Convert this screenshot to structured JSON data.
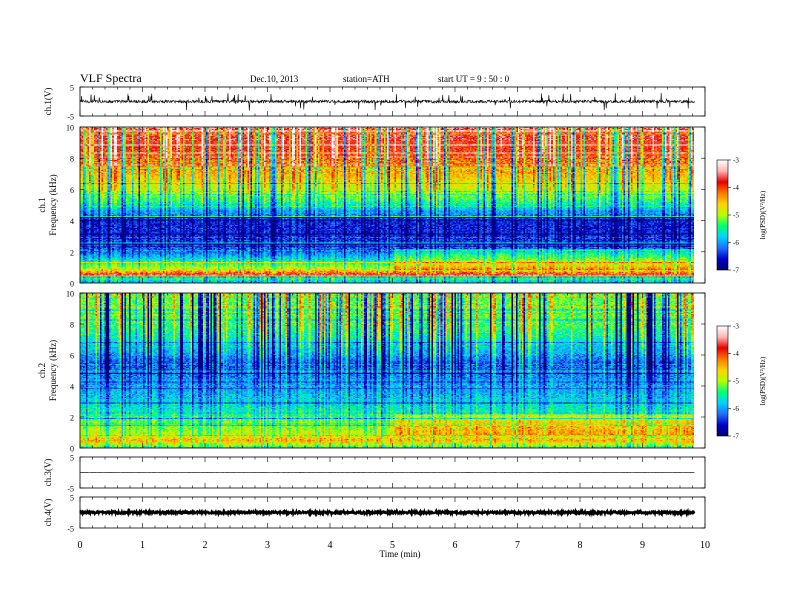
{
  "header": {
    "title": "VLF  Spectra",
    "date": "Dec.10, 2013",
    "station": "station=ATH",
    "start": "start  UT  =   9 : 50 : 0"
  },
  "colors": {
    "colormap": [
      "#000070",
      "#0000c8",
      "#1e6eff",
      "#00d2ff",
      "#00ff78",
      "#b4ff00",
      "#ffd200",
      "#ff7800",
      "#e60000",
      "#ffb4b4",
      "#ffffff"
    ],
    "trace": "#000000"
  },
  "chart_data": [
    {
      "type": "line",
      "panel": "ch1-waveform",
      "ylabel": "ch.1(V)",
      "ylim": [
        -5,
        5
      ],
      "y_ticks": [
        "5",
        "-5"
      ],
      "xlim": [
        0,
        10
      ],
      "x_data_end": 9.83,
      "baseline": 0,
      "noise_amplitude": 0.5,
      "spike_amplitude": 2.6
    },
    {
      "type": "heatmap",
      "panel": "ch1-spectrogram",
      "ylabel": [
        "ch.1",
        "Frequency  (kHz)"
      ],
      "ylim": [
        0,
        10
      ],
      "y_ticks": [
        "10",
        "8",
        "6",
        "4",
        "2",
        "0"
      ],
      "xlim": [
        0,
        10
      ],
      "x_data_end": 9.83,
      "colorbar": {
        "label": "log(PSD)(V²/Hz)",
        "range": [
          -7,
          -3
        ],
        "ticks": [
          "-3",
          "-4",
          "-5",
          "-6",
          "-7"
        ]
      },
      "profile": {
        "freq_khz": [
          0,
          0.4,
          0.5,
          0.8,
          1.2,
          2,
          3,
          4,
          4.5,
          5,
          5.5,
          6,
          7,
          8,
          9,
          10
        ],
        "log_psd": [
          -5.8,
          -5.3,
          -3.6,
          -4.6,
          -5.3,
          -6.2,
          -6.5,
          -6.5,
          -6.0,
          -5.6,
          -5.2,
          -4.9,
          -4.5,
          -4.1,
          -3.8,
          -3.6
        ]
      },
      "step_change_min": 5.05
    },
    {
      "type": "heatmap",
      "panel": "ch2-spectrogram",
      "ylabel": [
        "ch.2",
        "Frequency  (kHz)"
      ],
      "ylim": [
        0,
        10
      ],
      "y_ticks": [
        "10",
        "8",
        "6",
        "4",
        "2",
        "0"
      ],
      "xlim": [
        0,
        10
      ],
      "x_data_end": 9.83,
      "colorbar": {
        "label": "log(PSD)(V²/Hz)",
        "range": [
          -7,
          -3
        ],
        "ticks": [
          "-3",
          "-4",
          "-5",
          "-6",
          "-7"
        ]
      },
      "profile": {
        "freq_khz": [
          0,
          0.5,
          0.8,
          1.5,
          2.5,
          3.5,
          4.5,
          5.5,
          6,
          7,
          8,
          9,
          10
        ],
        "log_psd": [
          -5.4,
          -4.4,
          -4.9,
          -5.1,
          -5.6,
          -5.9,
          -6.1,
          -6.3,
          -6.0,
          -5.6,
          -5.3,
          -5.2,
          -5.2
        ]
      },
      "step_change_min": 5.05
    },
    {
      "type": "line",
      "panel": "ch3-waveform",
      "ylabel": "ch.3(V)",
      "ylim": [
        -5,
        5
      ],
      "y_ticks": [
        "5",
        "-5"
      ],
      "xlim": [
        0,
        10
      ],
      "x_data_end": 9.83,
      "baseline": 0,
      "noise_amplitude": 0.05
    },
    {
      "type": "line",
      "panel": "ch4-waveform",
      "ylabel": "ch.4(V)",
      "ylim": [
        -5,
        5
      ],
      "y_ticks": [
        "5",
        "-5"
      ],
      "xlim": [
        0,
        10
      ],
      "x_data_end": 9.83,
      "baseline": 0,
      "noise_amplitude": 0.35
    }
  ],
  "xaxis": {
    "label": "Time  (min)",
    "ticks": [
      "0",
      "1",
      "2",
      "3",
      "4",
      "5",
      "6",
      "7",
      "8",
      "9",
      "10"
    ]
  }
}
